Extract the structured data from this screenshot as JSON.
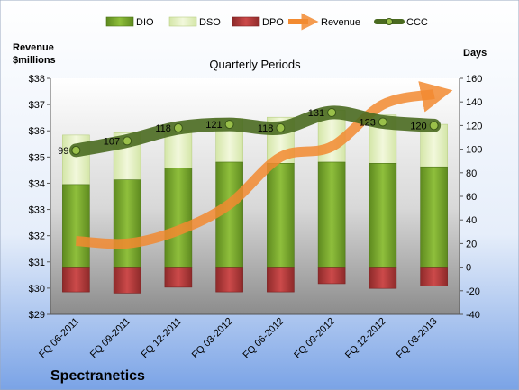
{
  "chart_data": {
    "type": "bar",
    "title": "Quarterly Periods",
    "company": "Spectranetics",
    "categories": [
      "FQ 06-2011",
      "FQ 09-2011",
      "FQ 12-2011",
      "FQ 03-2012",
      "FQ 06-2012",
      "FQ 09-2012",
      "FQ 12-2012",
      "FQ 03-2013"
    ],
    "left_axis": {
      "label_line1": "Revenue",
      "label_line2": "$millions",
      "min": 29,
      "max": 38,
      "step": 1,
      "prefix": "$"
    },
    "right_axis": {
      "label": "Days",
      "min": -40,
      "max": 160,
      "step": 20
    },
    "series": [
      {
        "name": "DIO",
        "type": "bar",
        "axis": "right",
        "values": [
          70,
          74,
          84,
          89,
          88,
          89,
          88,
          85
        ],
        "color": "#7aa230"
      },
      {
        "name": "DSO",
        "type": "bar",
        "axis": "right",
        "values": [
          42,
          40,
          32,
          37,
          39,
          44,
          41,
          36
        ],
        "color": "#e3f0c0"
      },
      {
        "name": "DPO",
        "type": "bar",
        "axis": "right",
        "values": [
          -21,
          -22,
          -17,
          -21,
          -21,
          -14,
          -18,
          -16
        ],
        "color": "#b83a3a"
      },
      {
        "name": "Revenue",
        "type": "line",
        "axis": "left",
        "values": [
          31.8,
          31.7,
          32.2,
          33.2,
          35.0,
          35.4,
          37.0,
          37.4
        ],
        "color": "#f28a30"
      },
      {
        "name": "CCC",
        "type": "line",
        "axis": "right",
        "values": [
          99,
          107,
          118,
          121,
          118,
          131,
          123,
          120
        ],
        "color": "#4a6a20"
      }
    ],
    "legend_position": "top",
    "grid": false
  }
}
